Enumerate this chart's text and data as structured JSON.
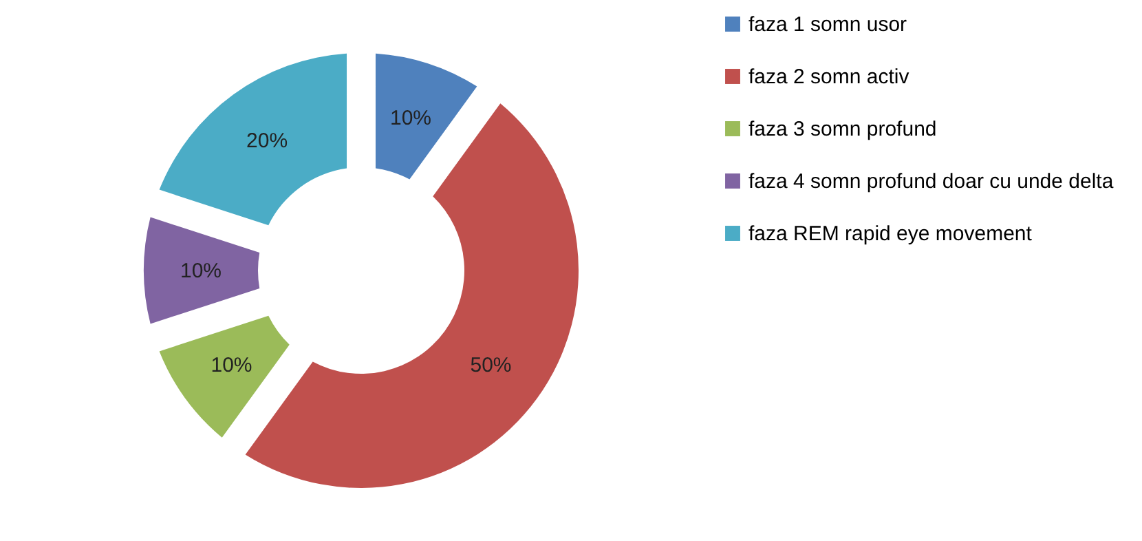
{
  "chart_data": {
    "type": "donut",
    "categories": [
      "faza  1 somn usor",
      "faza 2 somn activ",
      "faza 3 somn profund",
      "faza 4 somn profund doar cu unde delta",
      "faza REM rapid eye movement"
    ],
    "values": [
      10,
      50,
      10,
      10,
      20
    ],
    "value_labels": [
      "10%",
      "50%",
      "10%",
      "10%",
      "20%"
    ],
    "colors": [
      "#4f81bd",
      "#c0504d",
      "#9bbb59",
      "#8064a2",
      "#4bacc6"
    ],
    "legend": "right"
  }
}
